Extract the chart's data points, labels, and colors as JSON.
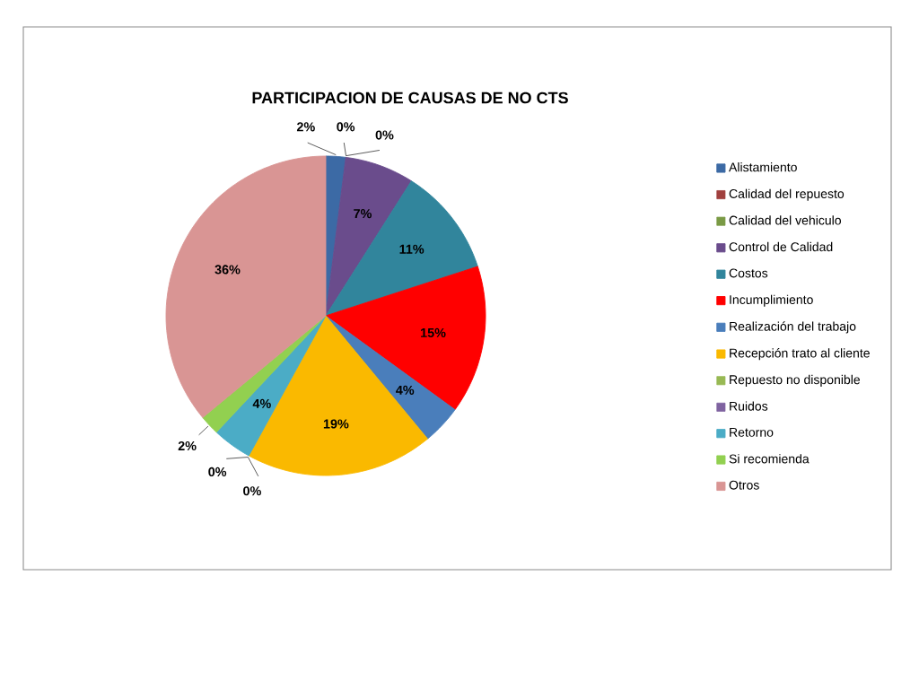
{
  "chart_data": {
    "type": "pie",
    "title": "PARTICIPACION DE CAUSAS DE NO CTS",
    "categories": [
      "Alistamiento",
      "Calidad del repuesto",
      "Calidad del vehiculo",
      "Control de Calidad",
      "Costos",
      "Incumplimiento",
      "Realización del trabajo",
      "Recepción trato al cliente",
      "Repuesto no disponible",
      "Ruidos",
      "Retorno",
      "Si recomienda",
      "Otros"
    ],
    "values": [
      2,
      0,
      0,
      7,
      11,
      15,
      4,
      19,
      0,
      0,
      4,
      2,
      36
    ],
    "value_labels": [
      "2%",
      "0%",
      "0%",
      "7%",
      "11%",
      "15%",
      "4%",
      "19%",
      "0%",
      "0%",
      "4%",
      "2%",
      "36%"
    ],
    "colors": [
      "#3c6aa5",
      "#a0403e",
      "#7a9a45",
      "#6a4c8c",
      "#31859c",
      "#ff0000",
      "#4a7ebb",
      "#fab900",
      "#98b954",
      "#7f63a0",
      "#4bacc6",
      "#92d050",
      "#d99594"
    ],
    "legend": "right"
  }
}
